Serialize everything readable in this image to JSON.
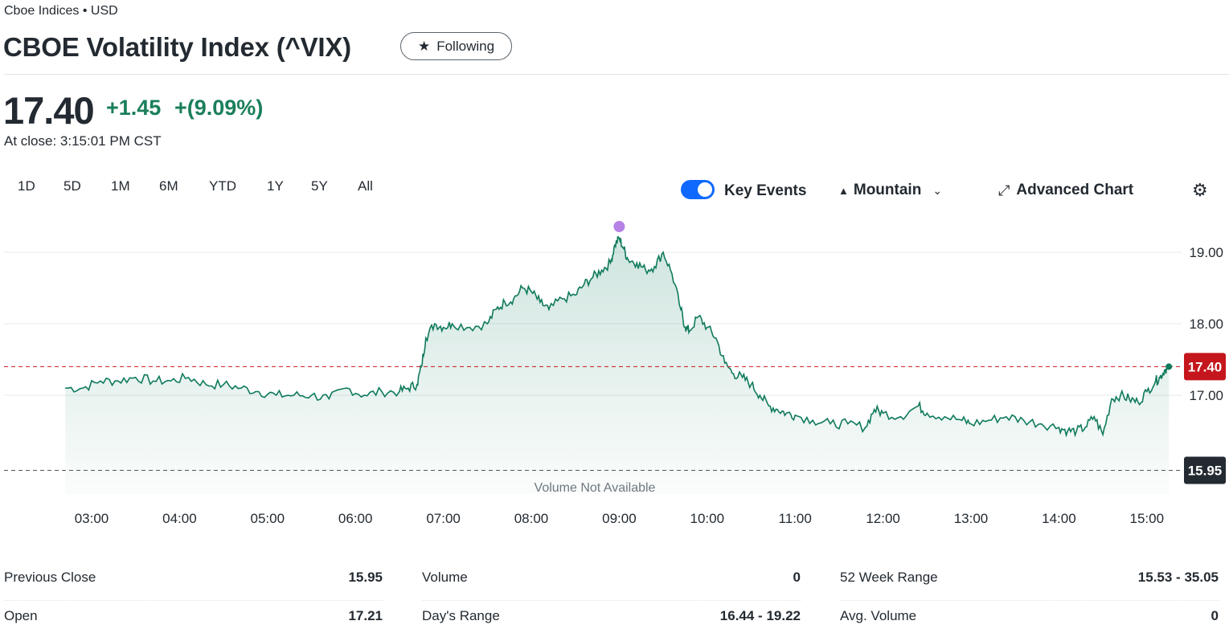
{
  "header": {
    "exchange": "Cboe Indices • USD",
    "title": "CBOE Volatility Index (^VIX)",
    "follow_label": "Following"
  },
  "quote": {
    "price": "17.40",
    "change": "+1.45",
    "change_pct": "+(9.09%)",
    "close_time": "At close: 3:15:01 PM CST"
  },
  "range_tabs": [
    "1D",
    "5D",
    "1M",
    "6M",
    "YTD",
    "1Y",
    "5Y",
    "All"
  ],
  "toolbar": {
    "key_events_label": "Key Events",
    "key_events_on": true,
    "chart_type_label": "Mountain",
    "advanced_label": "Advanced Chart"
  },
  "icons": {
    "star": "star-icon",
    "mountain": "mountain-icon",
    "chevron": "chevron-down-icon",
    "expand": "expand-arrows-icon",
    "settings": "gear-icon"
  },
  "colors": {
    "up": "#1a7f5a",
    "line": "#0f7a5c",
    "current_marker": "#c4161c",
    "prev_close_marker": "#232a31",
    "event_dot": "#b682e6",
    "toggle": "#0f69ff"
  },
  "chart_data": {
    "type": "area",
    "x_ticks": [
      "03:00",
      "04:00",
      "05:00",
      "06:00",
      "07:00",
      "08:00",
      "09:00",
      "10:00",
      "11:00",
      "12:00",
      "13:00",
      "14:00",
      "15:00"
    ],
    "y_ticks": [
      "19.00",
      "18.00",
      "17.00"
    ],
    "ylim": [
      15.6,
      19.5
    ],
    "current_label": "17.40",
    "prev_close_label": "15.95",
    "current_value": 17.4,
    "prev_close_value": 15.95,
    "volume_note": "Volume Not Available",
    "x_hours": [
      2.7,
      2.9,
      3.1,
      3.3,
      3.5,
      3.7,
      3.9,
      4.1,
      4.3,
      4.5,
      4.7,
      4.9,
      5.1,
      5.3,
      5.5,
      5.7,
      5.9,
      6.1,
      6.3,
      6.5,
      6.6,
      6.7,
      6.75,
      6.8,
      6.9,
      7.0,
      7.1,
      7.3,
      7.5,
      7.6,
      7.7,
      7.8,
      7.9,
      8.0,
      8.1,
      8.2,
      8.35,
      8.5,
      8.6,
      8.7,
      8.8,
      8.9,
      8.95,
      9.0,
      9.05,
      9.1,
      9.2,
      9.3,
      9.4,
      9.5,
      9.6,
      9.7,
      9.75,
      9.8,
      9.9,
      10.0,
      10.1,
      10.2,
      10.3,
      10.4,
      10.5,
      10.6,
      10.7,
      10.8,
      10.9,
      11.0,
      11.2,
      11.4,
      11.6,
      11.8,
      11.9,
      12.0,
      12.2,
      12.4,
      12.5,
      12.7,
      12.9,
      13.0,
      13.2,
      13.4,
      13.6,
      13.8,
      14.0,
      14.1,
      14.2,
      14.3,
      14.4,
      14.5,
      14.6,
      14.7,
      14.8,
      14.9,
      15.0,
      15.1,
      15.15,
      15.2,
      15.25
    ],
    "values": [
      17.1,
      17.1,
      17.2,
      17.2,
      17.25,
      17.2,
      17.2,
      17.25,
      17.15,
      17.15,
      17.1,
      17.05,
      17.0,
      17.0,
      17.0,
      16.95,
      17.1,
      17.0,
      17.05,
      17.05,
      17.1,
      17.15,
      17.4,
      17.8,
      18.0,
      17.95,
      18.0,
      17.95,
      18.0,
      18.2,
      18.3,
      18.35,
      18.5,
      18.45,
      18.3,
      18.2,
      18.35,
      18.4,
      18.55,
      18.65,
      18.75,
      18.85,
      19.1,
      19.2,
      19.05,
      18.9,
      18.85,
      18.75,
      18.8,
      19.0,
      18.7,
      18.2,
      17.95,
      17.9,
      18.1,
      17.95,
      17.8,
      17.45,
      17.3,
      17.25,
      17.15,
      17.0,
      16.85,
      16.8,
      16.75,
      16.72,
      16.65,
      16.6,
      16.6,
      16.55,
      16.8,
      16.75,
      16.7,
      16.85,
      16.75,
      16.7,
      16.65,
      16.6,
      16.65,
      16.7,
      16.65,
      16.6,
      16.55,
      16.5,
      16.5,
      16.55,
      16.7,
      16.45,
      16.95,
      17.0,
      16.95,
      16.9,
      17.05,
      17.2,
      17.25,
      17.35,
      17.4
    ],
    "key_event_at_hour": 9.0,
    "key_event_value": 19.22,
    "grid": true,
    "legend": "none"
  },
  "stats": [
    {
      "label": "Previous Close",
      "value": "15.95"
    },
    {
      "label": "Open",
      "value": "17.21"
    },
    {
      "label": "Volume",
      "value": "0"
    },
    {
      "label": "Day's Range",
      "value": "16.44 - 19.22"
    },
    {
      "label": "52 Week Range",
      "value": "15.53 - 35.05"
    },
    {
      "label": "Avg. Volume",
      "value": "0"
    }
  ]
}
